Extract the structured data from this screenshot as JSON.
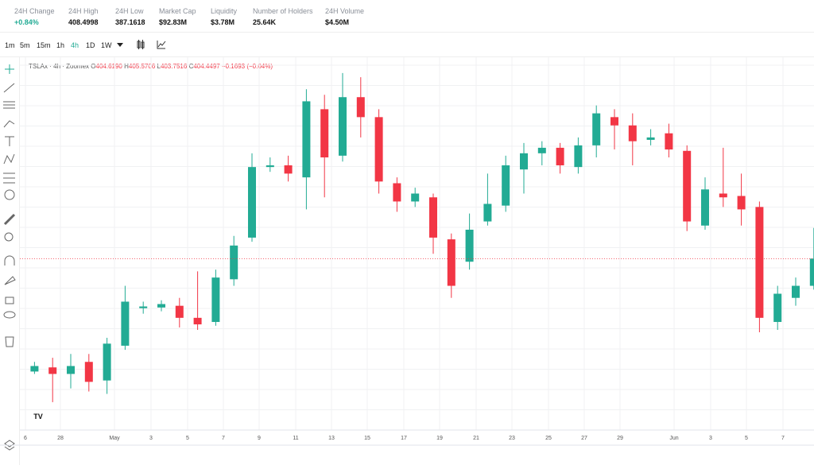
{
  "header": {
    "stats": [
      {
        "label": "24H Change",
        "value": "+0.84%"
      },
      {
        "label": "24H High",
        "value": "408.4998"
      },
      {
        "label": "24H Low",
        "value": "387.1618"
      },
      {
        "label": "Market Cap",
        "value": "$92.83M"
      },
      {
        "label": "Liquidity",
        "value": "$3.78M"
      },
      {
        "label": "Number of Holders",
        "value": "25.64K"
      },
      {
        "label": "24H Volume",
        "value": "$4.50M"
      }
    ]
  },
  "toolbar": {
    "intervals": [
      "1m",
      "5m",
      "15m",
      "1h",
      "4h",
      "1D",
      "1W"
    ],
    "active": "4h"
  },
  "chart_data": {
    "type": "candlestick",
    "symbol": "TSLAx · 4h · Zoomex",
    "legend": [
      {
        "key": "O",
        "value": "404.6190"
      },
      {
        "key": "H",
        "value": "405.5706"
      },
      {
        "key": "L",
        "value": "403.7516"
      },
      {
        "key": "C",
        "value": "404.4497"
      }
    ],
    "change": "−0.1693 (−0.04%)",
    "x_axis_labels": [
      "6",
      "28",
      "May",
      "3",
      "5",
      "7",
      "9",
      "11",
      "13",
      "15",
      "17",
      "19",
      "21",
      "23",
      "25",
      "27",
      "29",
      "Jun",
      "3",
      "5",
      "7"
    ],
    "open": [
      371.6,
      372.8,
      370.9,
      374.4,
      369.0,
      379.1,
      390.0,
      390.2,
      390.7,
      387.2,
      386.0,
      398.4,
      410.5,
      431.0,
      431.5,
      428.0,
      447.8,
      434.3,
      451.3,
      445.5,
      426.3,
      421.0,
      422.2,
      410.0,
      403.5,
      415.2,
      419.8,
      430.3,
      435.0,
      436.6,
      431.0,
      437.3,
      445.5,
      443.1,
      438.9,
      440.8,
      435.7,
      414.0,
      423.3,
      422.6,
      419.4,
      386.0,
      393.0,
      396.5
    ],
    "high": [
      374.4,
      375.6,
      376.7,
      376.7,
      381.4,
      396.5,
      391.9,
      392.3,
      393.0,
      400.7,
      401.2,
      411.0,
      435.0,
      433.8,
      434.3,
      453.6,
      452.0,
      458.3,
      457.1,
      447.8,
      428.0,
      425.0,
      423.3,
      411.7,
      417.5,
      429.1,
      434.3,
      438.0,
      438.5,
      438.0,
      439.6,
      448.9,
      447.8,
      446.6,
      442.0,
      443.6,
      437.3,
      428.0,
      436.6,
      429.1,
      421.0,
      396.5,
      398.9,
      413.3
    ],
    "low": [
      370.9,
      362.7,
      366.7,
      365.8,
      365.1,
      377.9,
      388.4,
      389.1,
      384.4,
      383.7,
      384.9,
      396.5,
      409.3,
      429.6,
      426.8,
      418.7,
      422.2,
      432.6,
      439.6,
      423.3,
      418.0,
      419.4,
      405.8,
      393.0,
      401.2,
      414.0,
      418.0,
      423.3,
      431.5,
      429.1,
      429.1,
      433.8,
      436.1,
      431.5,
      437.3,
      433.8,
      412.4,
      412.8,
      419.4,
      414.0,
      383.0,
      383.7,
      390.7,
      395.4
    ],
    "close": [
      373.2,
      370.9,
      373.2,
      368.6,
      379.7,
      391.9,
      390.5,
      391.2,
      387.2,
      385.3,
      398.9,
      408.2,
      431.0,
      431.5,
      429.1,
      450.1,
      433.8,
      451.3,
      445.5,
      426.8,
      421.0,
      423.3,
      410.5,
      396.5,
      412.8,
      420.3,
      431.5,
      435.0,
      436.6,
      431.5,
      437.3,
      446.6,
      443.1,
      438.5,
      439.6,
      436.1,
      415.2,
      424.5,
      422.2,
      418.7,
      387.2,
      394.2,
      396.5,
      404.4
    ],
    "up_color": "#22ab94",
    "down_color": "#f23645",
    "ylim": [
      354.6,
      462.9
    ]
  }
}
